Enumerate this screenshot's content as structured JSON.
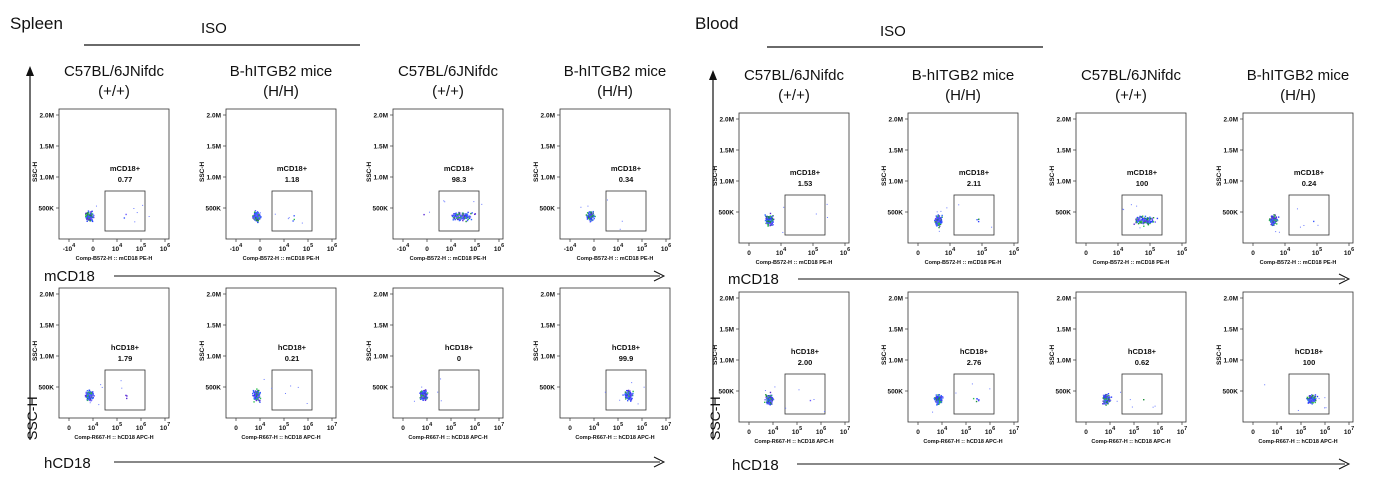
{
  "sections": [
    {
      "title": "Spleen",
      "group_label": "ISO",
      "columns": [
        {
          "strain": "C57BL/6JNifdc",
          "genotype": "(+/+)"
        },
        {
          "strain": "B-hITGB2 mice",
          "genotype": "(H/H)"
        },
        {
          "strain": "C57BL/6JNifdc",
          "genotype": "(+/+)"
        },
        {
          "strain": "B-hITGB2 mice",
          "genotype": "(H/H)"
        }
      ],
      "row_axis_labels": [
        "mCD18",
        "hCD18"
      ],
      "y_axis_label": "SSC-H"
    },
    {
      "title": "Blood",
      "group_label": "ISO",
      "columns": [
        {
          "strain": "C57BL/6JNifdc",
          "genotype": "(+/+)"
        },
        {
          "strain": "B-hITGB2 mice",
          "genotype": "(H/H)"
        },
        {
          "strain": "C57BL/6JNifdc",
          "genotype": "(+/+)"
        },
        {
          "strain": "B-hITGB2 mice",
          "genotype": "(H/H)"
        }
      ],
      "row_axis_labels": [
        "mCD18",
        "hCD18"
      ],
      "y_axis_label": "SSC-H"
    }
  ],
  "chart_data": {
    "type": "scatter",
    "plot_kind": "flow-cytometry-dot-plot",
    "y_axis": {
      "label": "SSC-H",
      "ticks": [
        "500K",
        "1.0M",
        "1.5M",
        "2.0M"
      ]
    },
    "rows": [
      {
        "marker": "mCD18",
        "gate_label": "mCD18+",
        "x_axis_label": "Comp-B572-H :: mCD18 PE-H",
        "x_ticks_spleen": [
          "-10^4",
          "0",
          "10^4",
          "10^5",
          "10^6"
        ],
        "x_ticks_blood": [
          "0",
          "10^4",
          "10^5",
          "10^6"
        ],
        "spleen_values": [
          0.77,
          1.18,
          98.3,
          0.34
        ],
        "blood_values": [
          1.53,
          2.11,
          100,
          0.24
        ],
        "spleen_value_labels": [
          "0.77",
          "1.18",
          "98.3",
          "0.34"
        ],
        "blood_value_labels": [
          "1.53",
          "2.11",
          "100",
          "0.24"
        ]
      },
      {
        "marker": "hCD18",
        "gate_label": "hCD18+",
        "x_axis_label": "Comp-R667-H :: hCD18 APC-H",
        "x_ticks_spleen": [
          "0",
          "10^4",
          "10^5",
          "10^6",
          "10^7"
        ],
        "x_ticks_blood": [
          "0",
          "10^4",
          "10^5",
          "10^6",
          "10^7"
        ],
        "spleen_values": [
          1.79,
          0.21,
          0,
          99.9
        ],
        "blood_values": [
          2.0,
          2.76,
          0.62,
          100
        ],
        "spleen_value_labels": [
          "1.79",
          "0.21",
          "0",
          "99.9"
        ],
        "blood_value_labels": [
          "2.00",
          "2.76",
          "0.62",
          "100"
        ]
      }
    ],
    "grid": false
  }
}
